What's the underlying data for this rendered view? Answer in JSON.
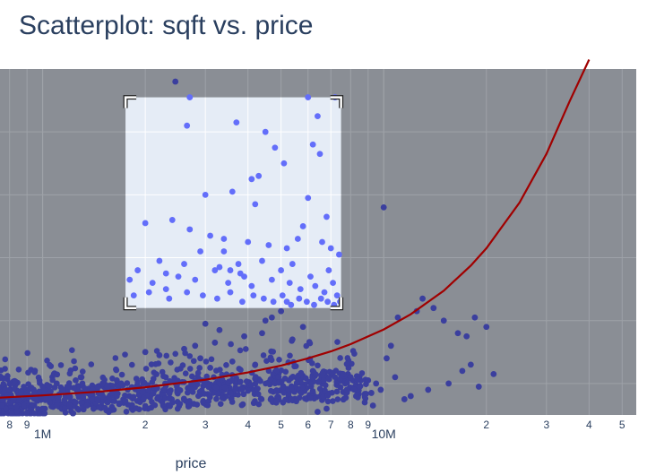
{
  "header": {
    "title": "Scatterplot: sqft vs. price"
  },
  "colors": {
    "plot_background": "#8a8e95",
    "grid": "#9ea2a8",
    "points": "#3b3f9e",
    "selected_points": "#636efa",
    "selection_fill": "#e5ecf6",
    "trend_line": "#a00000"
  },
  "chart_data": {
    "type": "scatter",
    "title": "Scatterplot: sqft vs. price",
    "xlabel": "price",
    "ylabel": "",
    "x_scale": "log",
    "xlim": [
      750000,
      55000000
    ],
    "ylim": [
      0,
      11
    ],
    "grid": true,
    "legend": "none",
    "x_ticks": [
      {
        "value": 800000,
        "label": "8"
      },
      {
        "value": 900000,
        "label": "9"
      },
      {
        "value": 1000000,
        "label": "1M",
        "major": true
      },
      {
        "value": 2000000,
        "label": "2"
      },
      {
        "value": 3000000,
        "label": "3"
      },
      {
        "value": 4000000,
        "label": "4"
      },
      {
        "value": 5000000,
        "label": "5"
      },
      {
        "value": 6000000,
        "label": "6"
      },
      {
        "value": 7000000,
        "label": "7"
      },
      {
        "value": 8000000,
        "label": "8"
      },
      {
        "value": 9000000,
        "label": "9"
      },
      {
        "value": 10000000,
        "label": "10M",
        "major": true
      },
      {
        "value": 20000000,
        "label": "2"
      },
      {
        "value": 30000000,
        "label": "3"
      },
      {
        "value": 40000000,
        "label": "4"
      },
      {
        "value": 50000000,
        "label": "5"
      }
    ],
    "selection": {
      "type": "box",
      "x_range": [
        1750000,
        7500000
      ],
      "y_range": [
        3.4,
        10.1
      ]
    },
    "series": [
      {
        "name": "",
        "type": "scatter",
        "x": [
          2450000,
          2700000,
          2650000,
          4100000,
          10000000,
          3400000,
          3750000,
          3550000,
          2300000,
          5200000,
          5000000,
          4700000,
          4500000,
          5800000,
          4400000,
          5400000,
          3000000,
          3300000,
          3900000,
          3200000,
          2800000,
          2600000,
          2000000,
          2200000,
          2900000,
          3600000,
          4200000,
          3100000,
          6200000,
          7600000,
          8000000,
          9000000,
          9500000,
          8500000,
          9800000,
          9200000,
          12000000,
          11500000,
          13000000,
          14000000,
          15000000,
          16500000,
          17500000,
          12500000,
          18500000,
          20000000,
          11000000,
          10500000,
          10200000,
          10800000,
          15500000,
          13500000,
          18000000,
          17000000,
          21000000,
          19000000,
          7800000,
          8300000,
          8800000,
          9300000,
          6800000,
          6400000,
          1000000,
          1100000,
          1150000,
          1250000,
          1300000,
          900000,
          850000,
          950000,
          1050000,
          1200000,
          1350000,
          1400000,
          1450000,
          1500000,
          1550000,
          1600000,
          1650000,
          1700000,
          1200000,
          1300000,
          1400000,
          1500000,
          1600000,
          800000,
          820000,
          880000,
          920000,
          780000,
          760000,
          1000000,
          1100000,
          1250000,
          1350000,
          1450000,
          1550000,
          1650000
        ],
        "y": [
          10.6,
          10.1,
          9.2,
          7.5,
          6.6,
          5.2,
          4.8,
          4.6,
          4.0,
          3.6,
          3.3,
          3.1,
          3.0,
          2.8,
          2.6,
          2.4,
          2.9,
          2.7,
          2.5,
          2.3,
          2.2,
          2.1,
          2.0,
          1.9,
          1.8,
          1.7,
          1.6,
          1.5,
          1.4,
          1.3,
          1.2,
          1.1,
          1.0,
          0.9,
          0.8,
          0.7,
          0.6,
          0.5,
          3.7,
          3.4,
          3.0,
          2.6,
          2.5,
          3.3,
          3.1,
          2.8,
          3.1,
          2.2,
          1.8,
          1.2,
          1.0,
          0.8,
          1.6,
          1.4,
          1.3,
          0.9,
          0.8,
          0.6,
          0.4,
          0.3,
          0.2,
          0.1,
          0.9,
          1.0,
          0.8,
          1.1,
          1.2,
          0.7,
          0.6,
          0.5,
          0.4,
          0.6,
          0.7,
          0.8,
          0.9,
          1.0,
          0.9,
          0.8,
          1.1,
          1.0,
          0.3,
          0.4,
          0.5,
          0.6,
          0.7,
          0.4,
          0.5,
          0.3,
          0.6,
          0.2,
          0.3,
          0.2,
          0.3,
          0.4,
          0.3,
          0.5,
          0.4,
          0.6
        ]
      },
      {
        "name": "",
        "type": "scatter",
        "selected": true,
        "x": [
          6000000,
          7200000,
          6400000,
          3700000,
          4500000,
          4800000,
          6200000,
          6500000,
          5100000,
          4300000,
          3600000,
          3000000,
          4200000,
          6000000,
          6800000,
          5800000,
          2000000,
          2400000,
          2700000,
          3100000,
          3400000,
          4000000,
          4600000,
          5200000,
          5600000,
          6600000,
          7000000,
          7400000,
          2200000,
          2600000,
          2900000,
          3300000,
          3800000,
          4400000,
          5000000,
          5400000,
          6100000,
          6900000,
          1800000,
          1900000,
          2100000,
          2300000,
          2500000,
          2800000,
          3200000,
          3500000,
          3900000,
          4100000,
          4700000,
          5300000,
          5700000,
          6300000,
          6700000,
          7100000,
          7300000,
          1850000,
          2050000,
          2350000,
          2650000,
          2950000,
          3250000,
          3550000,
          3850000,
          4150000,
          4450000,
          4750000,
          5050000,
          5350000,
          5650000,
          5950000,
          6250000,
          6550000,
          6850000,
          7150000,
          7450000
        ],
        "y": [
          10.1,
          10.1,
          9.5,
          9.3,
          9.0,
          8.5,
          8.6,
          8.3,
          8.0,
          7.6,
          7.1,
          7.0,
          6.7,
          6.9,
          6.3,
          6.0,
          6.1,
          6.2,
          5.9,
          5.7,
          5.6,
          5.5,
          5.4,
          5.3,
          5.6,
          5.5,
          5.3,
          5.1,
          4.9,
          4.8,
          5.2,
          4.7,
          4.5,
          4.9,
          4.6,
          4.8,
          4.4,
          4.6,
          4.3,
          4.6,
          4.2,
          4.5,
          4.4,
          4.3,
          4.6,
          4.2,
          4.4,
          4.1,
          4.3,
          4.2,
          4.0,
          4.1,
          3.9,
          4.2,
          3.8,
          3.8,
          3.9,
          3.7,
          3.9,
          3.8,
          3.7,
          3.9,
          3.6,
          3.8,
          3.7,
          3.6,
          3.8,
          3.5,
          3.7,
          3.6,
          3.5,
          3.7,
          3.6,
          3.5,
          3.6
        ]
      },
      {
        "name": "",
        "type": "line",
        "x": [
          750000,
          1000000,
          1500000,
          2000000,
          3000000,
          4000000,
          5000000,
          6000000,
          7000000,
          8000000,
          10000000,
          12000000,
          15000000,
          18000000,
          20000000,
          25000000,
          30000000,
          35000000,
          40000000
        ],
        "y": [
          0.55,
          0.62,
          0.75,
          0.88,
          1.12,
          1.35,
          1.57,
          1.8,
          2.02,
          2.25,
          2.72,
          3.2,
          3.95,
          4.75,
          5.3,
          6.75,
          8.3,
          9.95,
          11.3
        ]
      }
    ]
  }
}
